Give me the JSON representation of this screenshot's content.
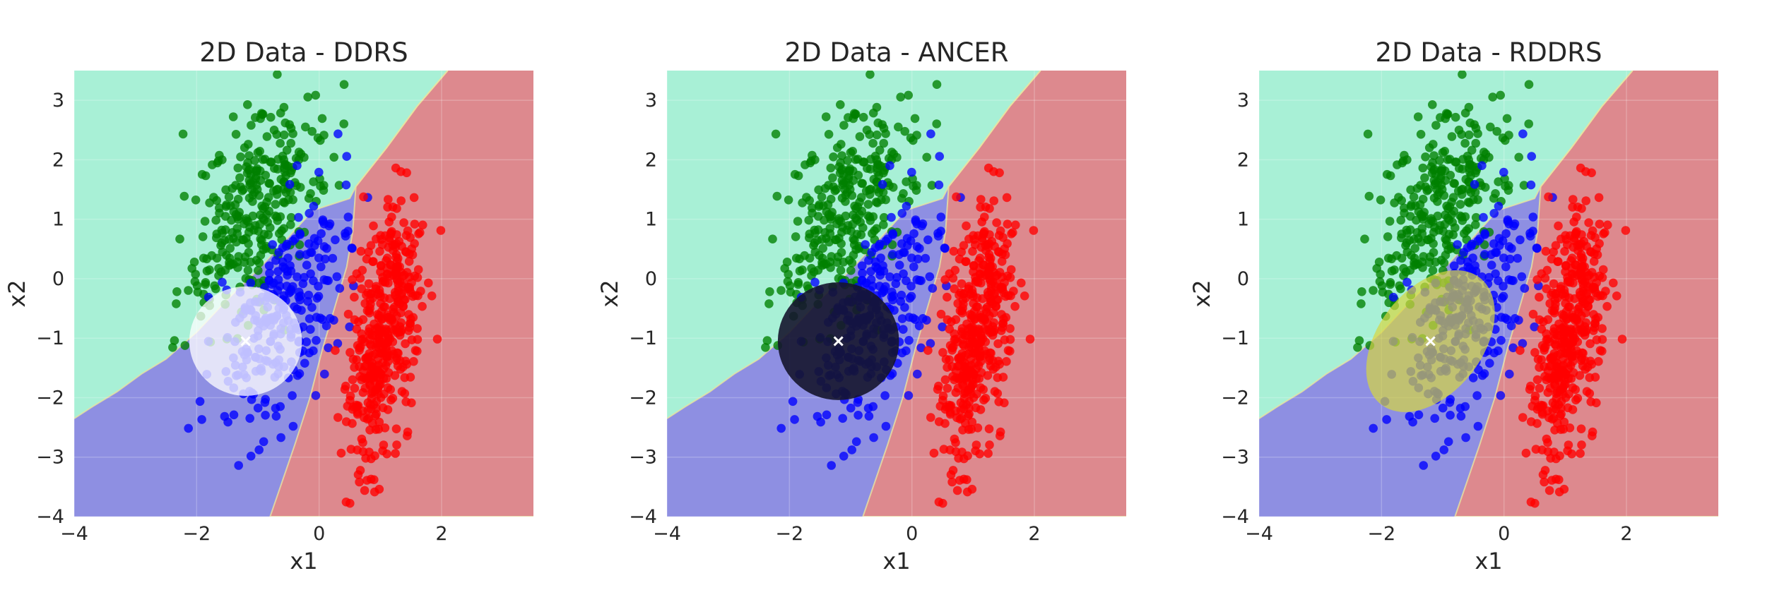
{
  "figure": {
    "description": "Three scatter panels with classifier decision regions and a certification region around a test point"
  },
  "colors": {
    "region_green": "#a8f0d6",
    "region_blue": "#8e8fe2",
    "region_red": "#dd898e",
    "point_green": "#008000",
    "point_blue": "#0000ff",
    "point_red": "#ff0000",
    "marker": "#ffffff"
  },
  "chart_data": [
    {
      "type": "scatter",
      "title": "2D Data - DDRS",
      "xlabel": "x1",
      "ylabel": "x2",
      "xlim": [
        -4,
        3.5
      ],
      "ylim": [
        -4,
        3.5
      ],
      "xticks": [
        -4,
        -2,
        0,
        2
      ],
      "yticks": [
        -4,
        -3,
        -2,
        -1,
        0,
        1,
        2,
        3
      ],
      "grid": true,
      "series": [
        {
          "class": "green",
          "center": [
            -1.0,
            1.2
          ],
          "spread": [
            0.55,
            0.95
          ],
          "correlation": 0.55,
          "count": 300
        },
        {
          "class": "blue",
          "center": [
            -0.6,
            -0.7
          ],
          "spread": [
            0.55,
            0.95
          ],
          "correlation": 0.6,
          "count": 260
        },
        {
          "class": "red",
          "center": [
            1.05,
            -0.9
          ],
          "spread": [
            0.3,
            1.05
          ],
          "correlation": 0.45,
          "count": 420
        }
      ],
      "test_point": {
        "x": -1.2,
        "y": -1.05,
        "marker": "x"
      },
      "certified_region": {
        "shape": "circle",
        "center": [
          -1.2,
          -1.05
        ],
        "radius_x": 0.92,
        "radius_y": 0.92,
        "angle_deg": 0,
        "color": "#ffffff",
        "opacity": 0.75
      }
    },
    {
      "type": "scatter",
      "title": "2D Data - ANCER",
      "xlabel": "x1",
      "ylabel": "x2",
      "xlim": [
        -4,
        3.5
      ],
      "ylim": [
        -4,
        3.5
      ],
      "xticks": [
        -4,
        -2,
        0,
        2
      ],
      "yticks": [
        -4,
        -3,
        -2,
        -1,
        0,
        1,
        2,
        3
      ],
      "grid": true,
      "series": [
        {
          "class": "green",
          "center": [
            -1.0,
            1.2
          ],
          "spread": [
            0.55,
            0.95
          ],
          "correlation": 0.55,
          "count": 300
        },
        {
          "class": "blue",
          "center": [
            -0.6,
            -0.7
          ],
          "spread": [
            0.55,
            0.95
          ],
          "correlation": 0.6,
          "count": 260
        },
        {
          "class": "red",
          "center": [
            1.05,
            -0.9
          ],
          "spread": [
            0.3,
            1.05
          ],
          "correlation": 0.45,
          "count": 420
        }
      ],
      "test_point": {
        "x": -1.2,
        "y": -1.05,
        "marker": "x"
      },
      "certified_region": {
        "shape": "circle",
        "center": [
          -1.2,
          -1.05
        ],
        "radius_x": 0.99,
        "radius_y": 0.99,
        "angle_deg": 0,
        "color": "#15152e",
        "opacity": 0.9
      }
    },
    {
      "type": "scatter",
      "title": "2D Data - RDDRS",
      "xlabel": "x1",
      "ylabel": "x2",
      "xlim": [
        -4,
        3.5
      ],
      "ylim": [
        -4,
        3.5
      ],
      "xticks": [
        -4,
        -2,
        0,
        2
      ],
      "yticks": [
        -4,
        -3,
        -2,
        -1,
        0,
        1,
        2,
        3
      ],
      "grid": true,
      "series": [
        {
          "class": "green",
          "center": [
            -1.0,
            1.2
          ],
          "spread": [
            0.55,
            0.95
          ],
          "correlation": 0.55,
          "count": 300
        },
        {
          "class": "blue",
          "center": [
            -0.6,
            -0.7
          ],
          "spread": [
            0.55,
            0.95
          ],
          "correlation": 0.6,
          "count": 260
        },
        {
          "class": "red",
          "center": [
            1.05,
            -0.9
          ],
          "spread": [
            0.3,
            1.05
          ],
          "correlation": 0.45,
          "count": 420
        }
      ],
      "test_point": {
        "x": -1.2,
        "y": -1.05,
        "marker": "x"
      },
      "certified_region": {
        "shape": "ellipse",
        "center": [
          -1.2,
          -1.05
        ],
        "radius_x": 0.85,
        "radius_y": 1.35,
        "angle_deg": 38,
        "color": "#d6d642",
        "opacity": 0.7
      }
    }
  ],
  "decision_boundaries": {
    "green_region_polygon": [
      [
        -4,
        3.5
      ],
      [
        -4,
        -2.35
      ],
      [
        -3.7,
        -2.15
      ],
      [
        -3.3,
        -1.9
      ],
      [
        -2.9,
        -1.6
      ],
      [
        -2.5,
        -1.35
      ],
      [
        -2.0,
        -0.9
      ],
      [
        -1.5,
        -0.35
      ],
      [
        -1.0,
        0.15
      ],
      [
        -0.5,
        0.7
      ],
      [
        -0.1,
        1.15
      ],
      [
        0.5,
        1.35
      ],
      [
        0.6,
        1.55
      ],
      [
        1.1,
        2.2
      ],
      [
        1.6,
        2.9
      ],
      [
        2.1,
        3.5
      ]
    ],
    "red_region_polygon": [
      [
        2.1,
        3.5
      ],
      [
        1.6,
        2.9
      ],
      [
        1.1,
        2.2
      ],
      [
        0.6,
        1.55
      ],
      [
        0.55,
        0.8
      ],
      [
        0.45,
        0.2
      ],
      [
        0.25,
        -0.5
      ],
      [
        0.05,
        -1.2
      ],
      [
        -0.15,
        -2.0
      ],
      [
        -0.4,
        -2.8
      ],
      [
        -0.6,
        -3.4
      ],
      [
        -0.8,
        -4
      ],
      [
        3.5,
        -4
      ],
      [
        3.5,
        3.5
      ]
    ]
  }
}
